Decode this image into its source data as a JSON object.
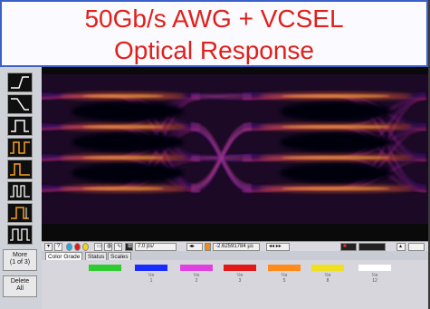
{
  "banner": {
    "line1": "50Gb/s AWG + VCSEL",
    "line2": "Optical Response"
  },
  "sidebar": {
    "more_label": "More\n(1 of 3)",
    "delete_label": "Delete\nAll"
  },
  "controls": {
    "timebase": "7.0 ps/",
    "position": "-2.62591784 µs"
  },
  "tabs": [
    {
      "label": "Color Grade"
    },
    {
      "label": "Status"
    },
    {
      "label": "Scales"
    }
  ],
  "color_grade": [
    {
      "color": "#2ecc2e",
      "label": ""
    },
    {
      "color": "#1a2cff",
      "label": "½x\n1"
    },
    {
      "color": "#e040e0",
      "label": "½x\n2"
    },
    {
      "color": "#e01818",
      "label": "½x\n3"
    },
    {
      "color": "#ff8c1a",
      "label": "½x\n5"
    },
    {
      "color": "#f0e020",
      "label": "½x\n8"
    },
    {
      "color": "#ffffff",
      "label": "½x\n12"
    }
  ]
}
